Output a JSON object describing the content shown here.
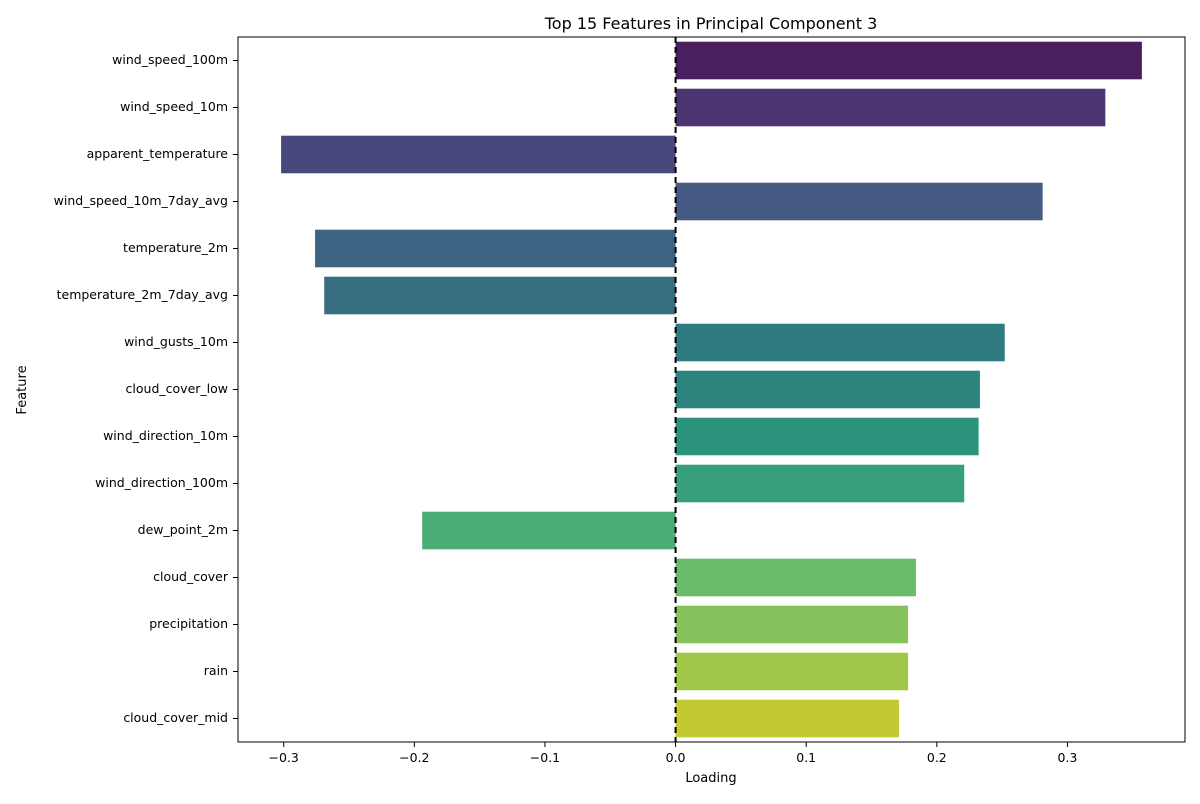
{
  "chart_data": {
    "type": "bar",
    "orientation": "horizontal",
    "title": "Top 15 Features in Principal Component 3",
    "xlabel": "Loading",
    "ylabel": "Feature",
    "xlim": [
      -0.335,
      0.39
    ],
    "xticks": [
      -0.3,
      -0.2,
      -0.1,
      0.0,
      0.1,
      0.2,
      0.3
    ],
    "xtick_labels": [
      "−0.3",
      "−0.2",
      "−0.1",
      "0.0",
      "0.1",
      "0.2",
      "0.3"
    ],
    "grid": false,
    "legend": null,
    "reference_line": {
      "x": 0.0,
      "style": "dashed",
      "color": "#000000"
    },
    "categories": [
      "wind_speed_100m",
      "wind_speed_10m",
      "apparent_temperature",
      "wind_speed_10m_7day_avg",
      "temperature_2m",
      "temperature_2m_7day_avg",
      "wind_gusts_10m",
      "cloud_cover_low",
      "wind_direction_10m",
      "wind_direction_100m",
      "dew_point_2m",
      "cloud_cover",
      "precipitation",
      "rain",
      "cloud_cover_mid"
    ],
    "values": [
      0.357,
      0.329,
      -0.302,
      0.281,
      -0.276,
      -0.269,
      0.252,
      0.233,
      0.232,
      0.221,
      -0.194,
      0.184,
      0.178,
      0.178,
      0.171
    ],
    "colors": [
      "#48205F",
      "#4B346F",
      "#48487C",
      "#455A82",
      "#3D6382",
      "#376E80",
      "#2F7A7F",
      "#2C837E",
      "#2B927C",
      "#389F7C",
      "#4BAC74",
      "#6ABC6A",
      "#85C25B",
      "#A1C748",
      "#C2CA31"
    ]
  }
}
